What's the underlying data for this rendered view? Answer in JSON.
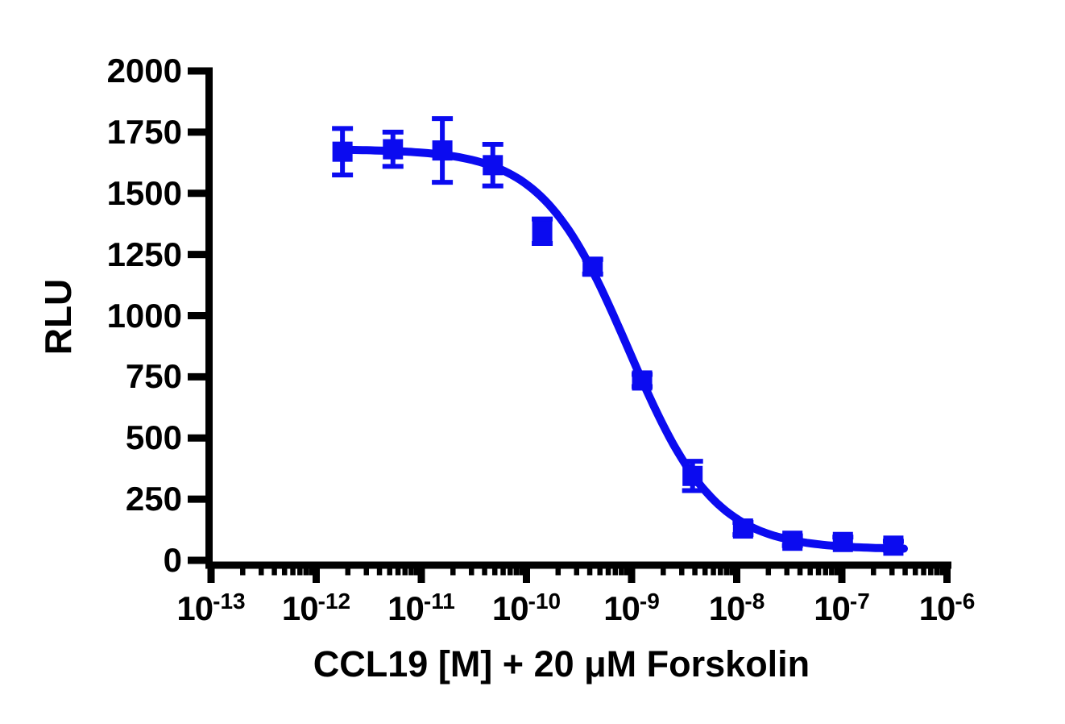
{
  "figure": {
    "background_color": "#ffffff",
    "axis_color": "#000000",
    "accent_color": "#0b0bf0"
  },
  "chart_data": {
    "type": "scatter",
    "title": "",
    "xlabel": "CCL19 [M] + 20 μM Forskolin",
    "ylabel": "RLU",
    "x_scale": "log10",
    "xlim_log10": [
      -13,
      -6
    ],
    "ylim": [
      0,
      2000
    ],
    "grid": "off",
    "legend": "none",
    "x_tick_base": "10",
    "x_tick_exponents": [
      -13,
      -12,
      -11,
      -10,
      -9,
      -8,
      -7,
      -6
    ],
    "y_ticks": [
      0,
      250,
      500,
      750,
      1000,
      1250,
      1500,
      1750,
      2000
    ],
    "series": [
      {
        "name": "CCL19 + 20 μM Forskolin",
        "marker": "square",
        "color": "#0b0bf0",
        "points": [
          {
            "conc_m": 1.8e-12,
            "log10_conc": -11.75,
            "rlu": 1670,
            "error": 95
          },
          {
            "conc_m": 5.3e-12,
            "log10_conc": -11.27,
            "rlu": 1680,
            "error": 70
          },
          {
            "conc_m": 1.6e-11,
            "log10_conc": -10.8,
            "rlu": 1675,
            "error": 130
          },
          {
            "conc_m": 4.8e-11,
            "log10_conc": -10.32,
            "rlu": 1615,
            "error": 85
          },
          {
            "conc_m": 1.4e-10,
            "log10_conc": -9.85,
            "rlu": 1345,
            "error": 50
          },
          {
            "conc_m": 4.3e-10,
            "log10_conc": -9.37,
            "rlu": 1200,
            "error": 30
          },
          {
            "conc_m": 1.3e-09,
            "log10_conc": -8.9,
            "rlu": 735,
            "error": 25
          },
          {
            "conc_m": 3.9e-09,
            "log10_conc": -8.42,
            "rlu": 345,
            "error": 60
          },
          {
            "conc_m": 1.2e-08,
            "log10_conc": -7.94,
            "rlu": 130,
            "error": 25
          },
          {
            "conc_m": 3.5e-08,
            "log10_conc": -7.47,
            "rlu": 80,
            "error": 20
          },
          {
            "conc_m": 1.1e-07,
            "log10_conc": -6.99,
            "rlu": 75,
            "error": 20
          },
          {
            "conc_m": 3.2e-07,
            "log10_conc": -6.51,
            "rlu": 60,
            "error": 18
          }
        ]
      }
    ],
    "fit_curve": {
      "model": "four_parameter_logistic_inhibition",
      "top": 1680,
      "bottom": 45,
      "log10_ic50": -9.03,
      "hill_slope": 1.05,
      "x_start_log10": -11.79,
      "x_end_log10": -6.41
    }
  }
}
